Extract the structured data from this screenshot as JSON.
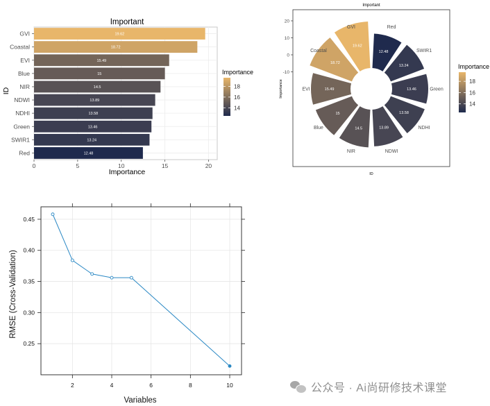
{
  "chart_data": [
    {
      "type": "bar",
      "orientation": "horizontal",
      "title": "Important",
      "xlabel": "Importance",
      "ylabel": "ID",
      "categories": [
        "GVI",
        "Coastal",
        "EVI",
        "Blue",
        "NIR",
        "NDWI",
        "NDHI",
        "Green",
        "SWIR1",
        "Red"
      ],
      "values": [
        19.62,
        18.72,
        15.49,
        15,
        14.5,
        13.89,
        13.58,
        13.46,
        13.24,
        12.48
      ],
      "value_labels": [
        "19.62",
        "18.72",
        "15.49",
        "15",
        "14.5",
        "13.89",
        "13.58",
        "13.46",
        "13.24",
        "12.48"
      ],
      "xlim": [
        0,
        21
      ],
      "xticks": [
        0,
        5,
        10,
        15,
        20
      ],
      "legend": {
        "title": "Importance",
        "ticks": [
          14,
          16,
          18
        ],
        "range": [
          12.48,
          19.62
        ],
        "low_color": "#1f2a4d",
        "high_color": "#e8b66a",
        "position": "right"
      }
    },
    {
      "type": "bar",
      "coordinate": "polar",
      "title": "Important",
      "xlabel": "ID",
      "ylabel": "Importance",
      "categories": [
        "Red",
        "SWIR1",
        "Green",
        "NDHI",
        "NDWI",
        "NIR",
        "Blue",
        "EVI",
        "Coastal",
        "GVI"
      ],
      "values": [
        12.48,
        13.24,
        13.46,
        13.58,
        13.89,
        14.5,
        15,
        15.49,
        18.72,
        19.62
      ],
      "value_labels": [
        "12.48",
        "13.24",
        "13.46",
        "13.58",
        "13.89",
        "14.5",
        "15",
        "15.49",
        "18.72",
        "19.62"
      ],
      "ylim": [
        -20,
        20
      ],
      "yticks": [
        20,
        10,
        0,
        -10
      ],
      "yticklabels": [
        "20",
        "10",
        "0",
        "-10"
      ],
      "legend": {
        "title": "Importance",
        "ticks": [
          14,
          16,
          18
        ],
        "range": [
          12.48,
          19.62
        ],
        "low_color": "#1f2a4d",
        "high_color": "#e8b66a",
        "position": "right"
      }
    },
    {
      "type": "line",
      "title": "",
      "xlabel": "Variables",
      "ylabel": "RMSE (Cross-Validation)",
      "x": [
        1,
        2,
        3,
        4,
        5,
        10
      ],
      "y": [
        0.458,
        0.384,
        0.362,
        0.356,
        0.356,
        0.214
      ],
      "xlim": [
        0.4,
        10.6
      ],
      "ylim": [
        0.2,
        0.47
      ],
      "xticks": [
        2,
        4,
        6,
        8,
        10
      ],
      "yticks": [
        0.25,
        0.3,
        0.35,
        0.4,
        0.45
      ],
      "yticklabels": [
        "0.25",
        "0.30",
        "0.35",
        "0.40",
        "0.45"
      ],
      "color": "#2a88c4"
    }
  ],
  "watermark": {
    "text": "公众号 · Ai尚研修技术课堂"
  }
}
